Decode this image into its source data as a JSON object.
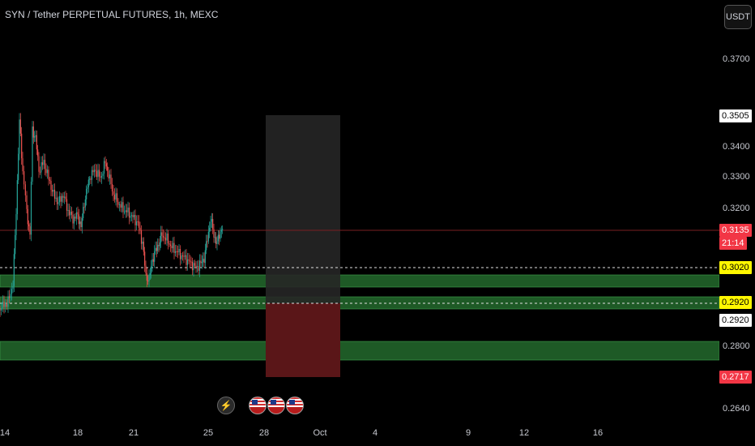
{
  "header": {
    "title": "SYN / Tether PERPETUAL FUTURES, 1h, MEXC"
  },
  "axis": {
    "currency": "USDT",
    "price_ticks": [
      "0.3700",
      "0.3400",
      "0.3300",
      "0.3200",
      "0.2800",
      "0.2640"
    ],
    "time_ticks": [
      "14",
      "18",
      "21",
      "25",
      "28",
      "Oct",
      "4",
      "9",
      "12",
      "16"
    ]
  },
  "price_labels": {
    "target": "0.3505",
    "current": "0.3135",
    "countdown": "21:14",
    "level_upper": "0.3020",
    "level_lower": "0.2920",
    "level_lower_plain": "0.2920",
    "stop": "0.2717"
  },
  "events": [
    {
      "icon": "lightning-icon"
    },
    {
      "icon": "us-flag-icon"
    },
    {
      "icon": "us-flag-icon"
    },
    {
      "icon": "us-flag-icon"
    }
  ],
  "colors": {
    "background": "#000000",
    "zone_green": "#1e5a26",
    "zone_red": "#5a1618",
    "zone_gray": "#222222",
    "up": "#26a69a",
    "down": "#ef5350",
    "level_yellow": "#fff700"
  },
  "chart_data": {
    "type": "candlestick",
    "symbol": "SYN / Tether PERPETUAL FUTURES",
    "interval": "1h",
    "exchange": "MEXC",
    "last_price": 0.3135,
    "horizontal_levels": [
      0.302,
      0.292
    ],
    "long_position": {
      "entry": 0.292,
      "target": 0.3505,
      "stop": 0.2717
    },
    "ylim": [
      0.26,
      0.382
    ]
  }
}
